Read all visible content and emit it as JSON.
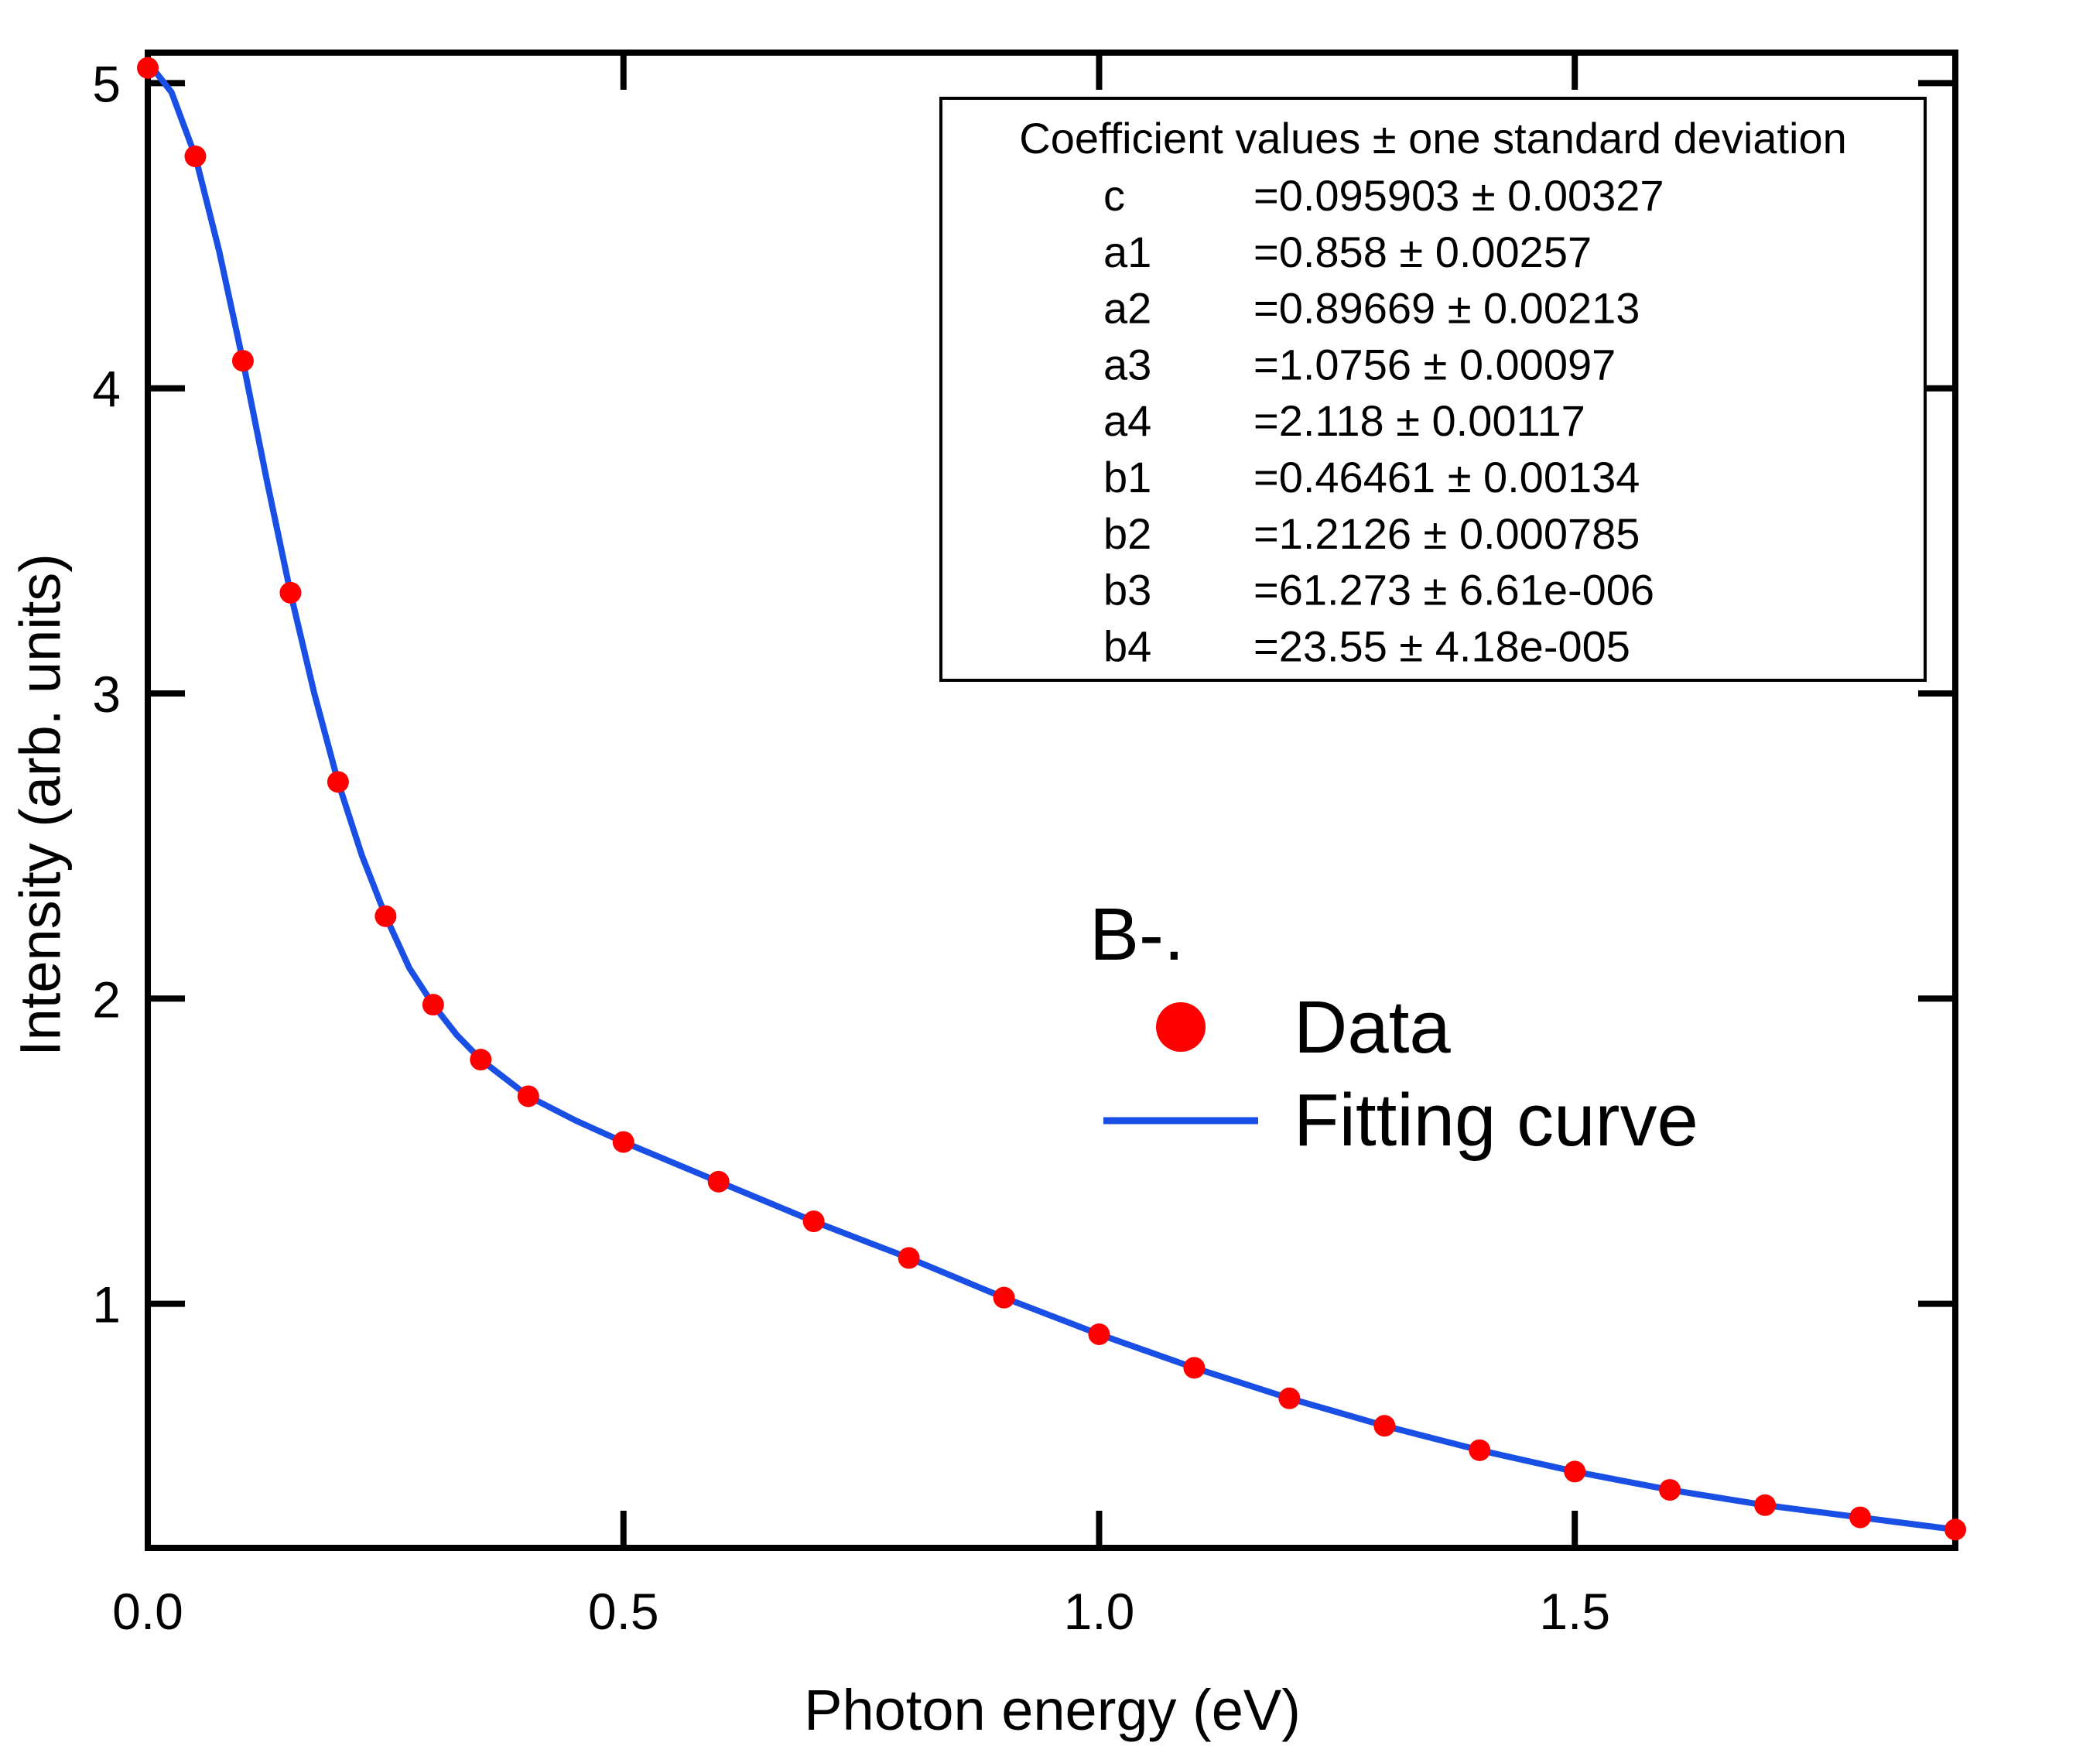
{
  "chart_data": {
    "type": "scatter",
    "title": "",
    "xlabel": "Photon energy (eV)",
    "ylabel": "Intensity (arb. units)",
    "xlim": [
      0.0,
      1.9
    ],
    "ylim": [
      0.2,
      5.1
    ],
    "x_ticks": [
      0.0,
      0.5,
      1.0,
      1.5
    ],
    "x_tick_labels": [
      "0.0",
      "0.5",
      "1.0",
      "1.5"
    ],
    "y_ticks": [
      1,
      2,
      3,
      4,
      5
    ],
    "y_tick_labels": [
      "1",
      "2",
      "3",
      "4",
      "5"
    ],
    "grid": false,
    "colors": {
      "data": "#ff0000",
      "curve": "#1a4fe6",
      "axes": "#000000"
    },
    "series": [
      {
        "name": "Data",
        "kind": "scatter",
        "x": [
          0.0,
          0.05,
          0.1,
          0.15,
          0.2,
          0.25,
          0.3,
          0.35,
          0.4,
          0.5,
          0.6,
          0.7,
          0.8,
          0.9,
          1.0,
          1.1,
          1.2,
          1.3,
          1.4,
          1.5,
          1.6,
          1.7,
          1.8,
          1.9
        ],
        "y": [
          5.05,
          4.76,
          4.09,
          3.33,
          2.71,
          2.27,
          1.98,
          1.8,
          1.68,
          1.53,
          1.4,
          1.27,
          1.15,
          1.02,
          0.9,
          0.79,
          0.69,
          0.6,
          0.52,
          0.45,
          0.39,
          0.34,
          0.3,
          0.26
        ]
      },
      {
        "name": "Fitting curve",
        "kind": "line",
        "x": [
          0.0,
          0.025,
          0.05,
          0.075,
          0.1,
          0.125,
          0.15,
          0.175,
          0.2,
          0.225,
          0.25,
          0.275,
          0.3,
          0.325,
          0.35,
          0.375,
          0.4,
          0.45,
          0.5,
          0.55,
          0.6,
          0.65,
          0.7,
          0.75,
          0.8,
          0.85,
          0.9,
          0.95,
          1.0,
          1.05,
          1.1,
          1.15,
          1.2,
          1.25,
          1.3,
          1.35,
          1.4,
          1.45,
          1.5,
          1.55,
          1.6,
          1.65,
          1.7,
          1.75,
          1.8,
          1.85,
          1.9
        ],
        "y": [
          5.07,
          4.97,
          4.76,
          4.45,
          4.09,
          3.7,
          3.33,
          3.0,
          2.71,
          2.47,
          2.27,
          2.1,
          1.98,
          1.88,
          1.8,
          1.74,
          1.68,
          1.6,
          1.53,
          1.465,
          1.4,
          1.335,
          1.27,
          1.21,
          1.15,
          1.085,
          1.02,
          0.96,
          0.9,
          0.845,
          0.79,
          0.74,
          0.69,
          0.645,
          0.6,
          0.56,
          0.52,
          0.485,
          0.45,
          0.42,
          0.39,
          0.365,
          0.34,
          0.32,
          0.3,
          0.28,
          0.26
        ]
      }
    ],
    "legend": {
      "placement": "right-center",
      "title": "B-.",
      "entries": [
        "Data",
        "Fitting curve"
      ]
    },
    "coefficient_box": {
      "placement": "top-right",
      "header": "Coefficient values ± one standard deviation",
      "rows": [
        {
          "name": "c",
          "value": "=0.095903 ± 0.00327"
        },
        {
          "name": "a1",
          "value": "=0.858 ± 0.00257"
        },
        {
          "name": "a2",
          "value": "=0.89669 ± 0.00213"
        },
        {
          "name": "a3",
          "value": "=1.0756 ± 0.00097"
        },
        {
          "name": "a4",
          "value": "=2.118 ± 0.00117"
        },
        {
          "name": "b1",
          "value": "=0.46461 ± 0.00134"
        },
        {
          "name": "b2",
          "value": "=1.2126 ± 0.000785"
        },
        {
          "name": "b3",
          "value": "=61.273 ± 6.61e-006"
        },
        {
          "name": "b4",
          "value": "=23.55 ± 4.18e-005"
        }
      ]
    }
  }
}
